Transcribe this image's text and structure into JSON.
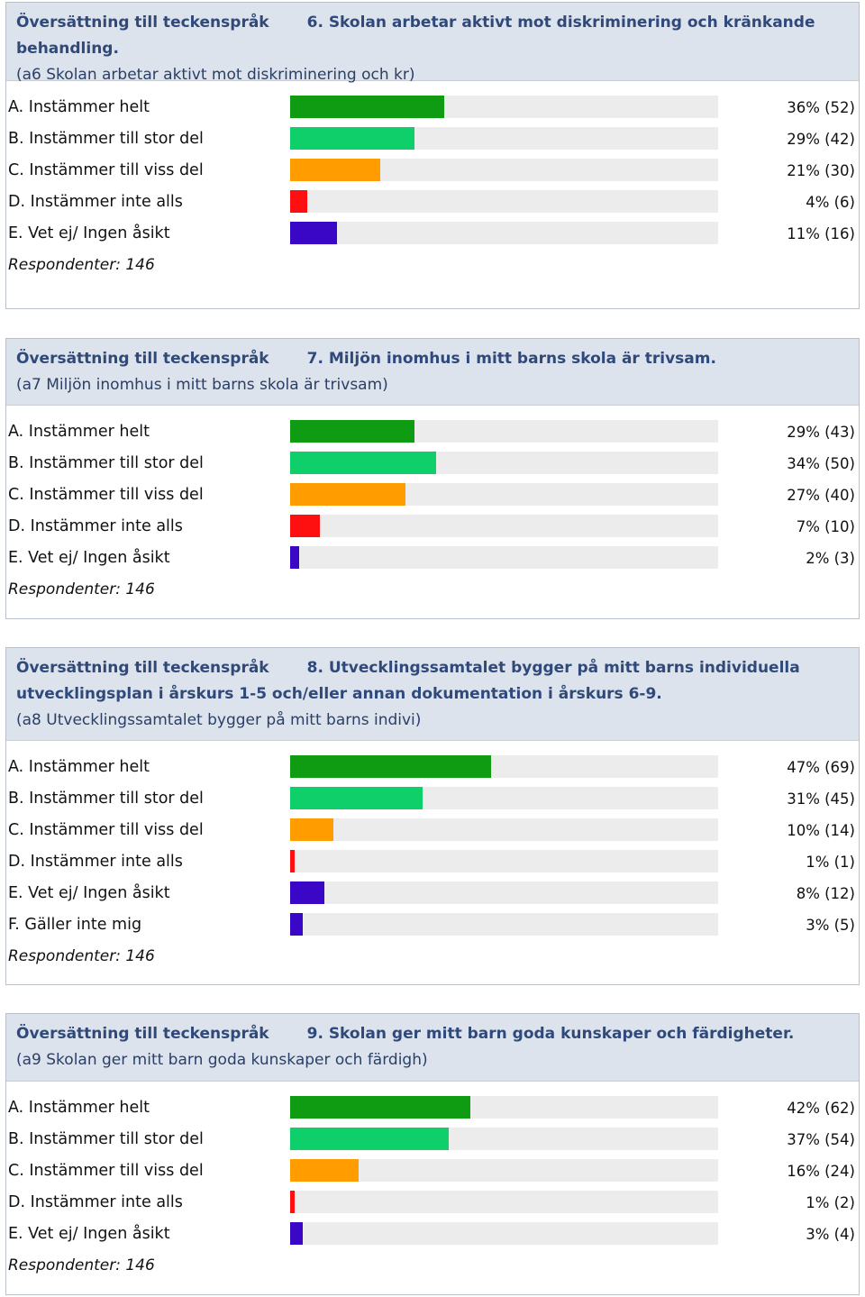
{
  "colors": {
    "A": "#0f9c12",
    "B": "#0fcf6b",
    "C": "#ff9d00",
    "D": "#ff1010",
    "E": "#3a07c6",
    "F": "#3a07c6"
  },
  "panels": [
    {
      "prefix": "Översättning till teckenspråk",
      "question": "6. Skolan arbetar aktivt mot diskriminering och kränkande behandling.",
      "sub": "(a6 Skolan arbetar aktivt mot diskriminering och kr)",
      "respondents": "Respondenter: 146",
      "options": [
        {
          "key": "A",
          "label": "A. Instämmer helt",
          "percent": 36,
          "value": "36% (52)"
        },
        {
          "key": "B",
          "label": "B. Instämmer till stor del",
          "percent": 29,
          "value": "29% (42)"
        },
        {
          "key": "C",
          "label": "C. Instämmer till viss del",
          "percent": 21,
          "value": "21% (30)"
        },
        {
          "key": "D",
          "label": "D. Instämmer inte alls",
          "percent": 4,
          "value": "4% (6)"
        },
        {
          "key": "E",
          "label": "E. Vet ej/ Ingen åsikt",
          "percent": 11,
          "value": "11% (16)"
        }
      ]
    },
    {
      "prefix": "Översättning till teckenspråk",
      "question": "7. Miljön inomhus i mitt barns skola är trivsam.",
      "sub": "(a7 Miljön inomhus i mitt barns skola är trivsam)",
      "respondents": "Respondenter: 146",
      "options": [
        {
          "key": "A",
          "label": "A. Instämmer helt",
          "percent": 29,
          "value": "29% (43)"
        },
        {
          "key": "B",
          "label": "B. Instämmer till stor del",
          "percent": 34,
          "value": "34% (50)"
        },
        {
          "key": "C",
          "label": "C. Instämmer till viss del",
          "percent": 27,
          "value": "27% (40)"
        },
        {
          "key": "D",
          "label": "D. Instämmer inte alls",
          "percent": 7,
          "value": "7% (10)"
        },
        {
          "key": "E",
          "label": "E. Vet ej/ Ingen åsikt",
          "percent": 2,
          "value": "2% (3)"
        }
      ]
    },
    {
      "prefix": "Översättning till teckenspråk",
      "question": "8. Utvecklingssamtalet bygger på mitt barns individuella utvecklingsplan i årskurs 1-5 och/eller annan dokumentation i årskurs 6-9.",
      "sub": "(a8 Utvecklingssamtalet bygger på mitt barns indivi)",
      "respondents": "Respondenter: 146",
      "options": [
        {
          "key": "A",
          "label": "A. Instämmer helt",
          "percent": 47,
          "value": "47% (69)"
        },
        {
          "key": "B",
          "label": "B. Instämmer till stor del",
          "percent": 31,
          "value": "31% (45)"
        },
        {
          "key": "C",
          "label": "C. Instämmer till viss del",
          "percent": 10,
          "value": "10% (14)"
        },
        {
          "key": "D",
          "label": "D. Instämmer inte alls",
          "percent": 1,
          "value": "1% (1)"
        },
        {
          "key": "E",
          "label": "E. Vet ej/ Ingen åsikt",
          "percent": 8,
          "value": "8% (12)"
        },
        {
          "key": "F",
          "label": "F. Gäller inte mig",
          "percent": 3,
          "value": "3% (5)"
        }
      ]
    },
    {
      "prefix": "Översättning till teckenspråk",
      "question": "9. Skolan ger mitt barn goda kunskaper och färdigheter.",
      "sub": "(a9 Skolan ger mitt barn goda kunskaper och färdigh)",
      "respondents": "Respondenter: 146",
      "options": [
        {
          "key": "A",
          "label": "A. Instämmer helt",
          "percent": 42,
          "value": "42% (62)"
        },
        {
          "key": "B",
          "label": "B. Instämmer till stor del",
          "percent": 37,
          "value": "37% (54)"
        },
        {
          "key": "C",
          "label": "C. Instämmer till viss del",
          "percent": 16,
          "value": "16% (24)"
        },
        {
          "key": "D",
          "label": "D. Instämmer inte alls",
          "percent": 1,
          "value": "1% (2)"
        },
        {
          "key": "E",
          "label": "E. Vet ej/ Ingen åsikt",
          "percent": 3,
          "value": "3% (4)"
        }
      ]
    }
  ],
  "chart_data": [
    {
      "type": "bar",
      "title": "6. Skolan arbetar aktivt mot diskriminering och kränkande behandling.",
      "categories": [
        "A. Instämmer helt",
        "B. Instämmer till stor del",
        "C. Instämmer till viss del",
        "D. Instämmer inte alls",
        "E. Vet ej/ Ingen åsikt"
      ],
      "values": [
        36,
        29,
        21,
        4,
        11
      ],
      "counts": [
        52,
        42,
        30,
        6,
        16
      ],
      "respondents": 146,
      "xlim": [
        0,
        100
      ]
    },
    {
      "type": "bar",
      "title": "7. Miljön inomhus i mitt barns skola är trivsam.",
      "categories": [
        "A. Instämmer helt",
        "B. Instämmer till stor del",
        "C. Instämmer till viss del",
        "D. Instämmer inte alls",
        "E. Vet ej/ Ingen åsikt"
      ],
      "values": [
        29,
        34,
        27,
        7,
        2
      ],
      "counts": [
        43,
        50,
        40,
        10,
        3
      ],
      "respondents": 146,
      "xlim": [
        0,
        100
      ]
    },
    {
      "type": "bar",
      "title": "8. Utvecklingssamtalet bygger på mitt barns individuella utvecklingsplan i årskurs 1-5 och/eller annan dokumentation i årskurs 6-9.",
      "categories": [
        "A. Instämmer helt",
        "B. Instämmer till stor del",
        "C. Instämmer till viss del",
        "D. Instämmer inte alls",
        "E. Vet ej/ Ingen åsikt",
        "F. Gäller inte mig"
      ],
      "values": [
        47,
        31,
        10,
        1,
        8,
        3
      ],
      "counts": [
        69,
        45,
        14,
        1,
        12,
        5
      ],
      "respondents": 146,
      "xlim": [
        0,
        100
      ]
    },
    {
      "type": "bar",
      "title": "9. Skolan ger mitt barn goda kunskaper och färdigheter.",
      "categories": [
        "A. Instämmer helt",
        "B. Instämmer till stor del",
        "C. Instämmer till viss del",
        "D. Instämmer inte alls",
        "E. Vet ej/ Ingen åsikt"
      ],
      "values": [
        42,
        37,
        16,
        1,
        3
      ],
      "counts": [
        62,
        54,
        24,
        2,
        4
      ],
      "respondents": 146,
      "xlim": [
        0,
        100
      ]
    }
  ]
}
